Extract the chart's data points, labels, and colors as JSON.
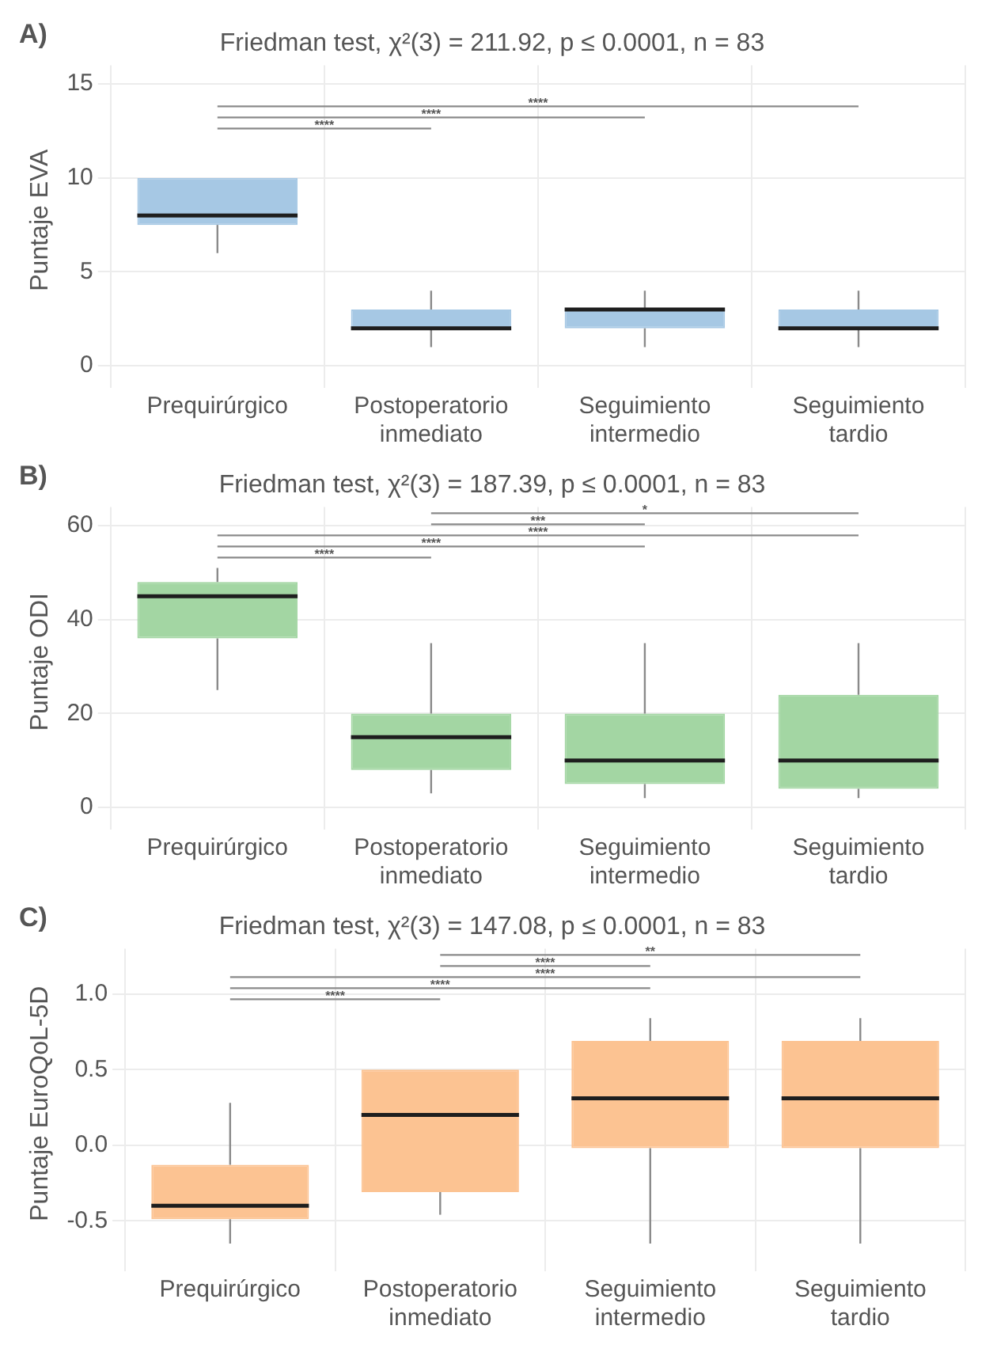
{
  "chart_data": [
    {
      "type": "box",
      "title": "Friedman test, χ²(3) = 211.92, p ≤ 0.0001, n = 83",
      "ylabel": "Puntaje EVA",
      "categories": [
        "Prequirúrgico",
        "Postoperatorio inmediato",
        "Seguimiento intermedio",
        "Seguimiento tardio"
      ],
      "series": [
        {
          "color": "#a6c8e4",
          "boxes": [
            {
              "low": 6,
              "q1": 7.5,
              "median": 8,
              "q3": 10,
              "high": 10
            },
            {
              "low": 1,
              "q1": 2,
              "median": 2,
              "q3": 3,
              "high": 4
            },
            {
              "low": 1,
              "q1": 2,
              "median": 3,
              "q3": 3,
              "high": 4
            },
            {
              "low": 1,
              "q1": 2,
              "median": 2,
              "q3": 3,
              "high": 4
            }
          ]
        }
      ],
      "ylim": [
        -0.5,
        16
      ],
      "yticks": [
        0,
        5,
        10,
        15
      ],
      "grid": true,
      "annotations": [
        "A)",
        "****",
        "****",
        "****"
      ]
    },
    {
      "type": "box",
      "title": "Friedman test, χ²(3) = 187.39, p ≤ 0.0001, n = 83",
      "ylabel": "Puntaje ODI",
      "categories": [
        "Prequirúrgico",
        "Postoperatorio inmediato",
        "Seguimiento intermedio",
        "Seguimiento tardio"
      ],
      "series": [
        {
          "color": "#a3d6a3",
          "boxes": [
            {
              "low": 25,
              "q1": 36,
              "median": 45,
              "q3": 48,
              "high": 51
            },
            {
              "low": 3,
              "q1": 8,
              "median": 15,
              "q3": 20,
              "high": 35
            },
            {
              "low": 2,
              "q1": 5,
              "median": 10,
              "q3": 20,
              "high": 35
            },
            {
              "low": 2,
              "q1": 4,
              "median": 10,
              "q3": 24,
              "high": 35
            }
          ]
        }
      ],
      "ylim": [
        -2,
        64
      ],
      "yticks": [
        0,
        20,
        40,
        60
      ],
      "grid": true,
      "annotations": [
        "B)",
        "****",
        "****",
        "****",
        "***",
        "*"
      ]
    },
    {
      "type": "box",
      "title": "Friedman test, χ²(3) = 147.08, p ≤ 0.0001, n = 83",
      "ylabel": "Puntaje EuroQoL-5D",
      "categories": [
        "Prequirúrgico",
        "Postoperatorio inmediato",
        "Seguimiento intermedio",
        "Seguimiento tardio"
      ],
      "series": [
        {
          "color": "#fcc392",
          "boxes": [
            {
              "low": -0.65,
              "q1": -0.49,
              "median": -0.4,
              "q3": -0.13,
              "high": 0.28
            },
            {
              "low": -0.46,
              "q1": -0.31,
              "median": 0.2,
              "q3": 0.5,
              "high": 0.5
            },
            {
              "low": -0.65,
              "q1": -0.02,
              "median": 0.31,
              "q3": 0.69,
              "high": 0.84
            },
            {
              "low": -0.65,
              "q1": -0.02,
              "median": 0.31,
              "q3": 0.69,
              "high": 0.84
            }
          ]
        }
      ],
      "ylim": [
        -0.75,
        1.3
      ],
      "yticks": [
        {
          "value": -0.5,
          "label": "-0.5"
        },
        {
          "value": 0,
          "label": "0.0"
        },
        {
          "value": 0.5,
          "label": "0.5"
        },
        {
          "value": 1,
          "label": "1.0"
        }
      ],
      "grid": true,
      "annotations": [
        "C)",
        "****",
        "****",
        "****",
        "****",
        "**"
      ]
    }
  ]
}
